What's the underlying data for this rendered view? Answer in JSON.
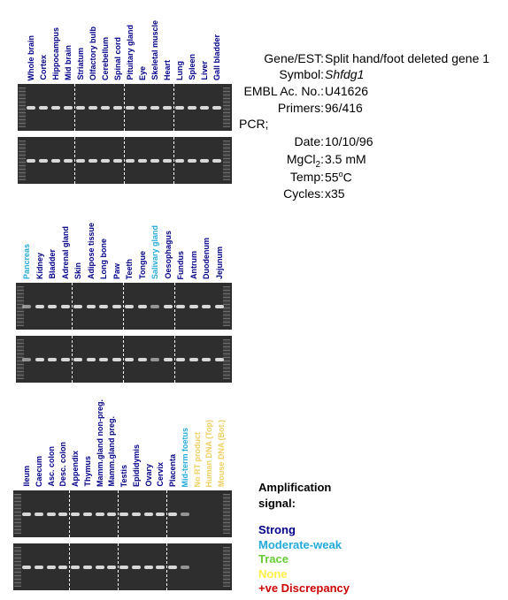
{
  "panels": [
    {
      "lanes": [
        {
          "label": "Whole brain",
          "color": "#00008b"
        },
        {
          "label": "Cortex",
          "color": "#00008b"
        },
        {
          "label": "Hippocampus",
          "color": "#00008b"
        },
        {
          "label": "Mid brain",
          "color": "#00008b"
        },
        {
          "label": "Striatum",
          "color": "#00008b"
        },
        {
          "label": "Olfactory bulb",
          "color": "#00008b"
        },
        {
          "label": "Cerebellum",
          "color": "#00008b"
        },
        {
          "label": "Spinal cord",
          "color": "#00008b"
        },
        {
          "label": "Pituitary gland",
          "color": "#00008b"
        },
        {
          "label": "Eye",
          "color": "#00008b"
        },
        {
          "label": "Skeletal muscle",
          "color": "#00008b"
        },
        {
          "label": "Heart",
          "color": "#00008b"
        },
        {
          "label": "Lung",
          "color": "#00008b"
        },
        {
          "label": "Spleen",
          "color": "#00008b"
        },
        {
          "label": "Liver",
          "color": "#00008b"
        },
        {
          "label": "Gall bladder",
          "color": "#00008b"
        }
      ]
    },
    {
      "lanes": [
        {
          "label": "Pancreas",
          "color": "#22aadd"
        },
        {
          "label": "Kidney",
          "color": "#00008b"
        },
        {
          "label": "Bladder",
          "color": "#00008b"
        },
        {
          "label": "Adrenal gland",
          "color": "#00008b"
        },
        {
          "label": "Skin",
          "color": "#00008b"
        },
        {
          "label": "Adipose tissue",
          "color": "#00008b"
        },
        {
          "label": "Long bone",
          "color": "#00008b"
        },
        {
          "label": "Paw",
          "color": "#00008b"
        },
        {
          "label": "Teeth",
          "color": "#00008b"
        },
        {
          "label": "Tongue",
          "color": "#00008b"
        },
        {
          "label": "Salivary gland",
          "color": "#22aadd"
        },
        {
          "label": "Oesophagus",
          "color": "#00008b"
        },
        {
          "label": "Fundus",
          "color": "#00008b"
        },
        {
          "label": "Antrum",
          "color": "#00008b"
        },
        {
          "label": "Duodenum",
          "color": "#00008b"
        },
        {
          "label": "Jejunum",
          "color": "#00008b"
        }
      ]
    },
    {
      "lanes": [
        {
          "label": "Ileum",
          "color": "#00008b"
        },
        {
          "label": "Caecum",
          "color": "#00008b"
        },
        {
          "label": "Asc. colon",
          "color": "#00008b"
        },
        {
          "label": "Desc. colon",
          "color": "#00008b"
        },
        {
          "label": "Appendix",
          "color": "#00008b"
        },
        {
          "label": "Thymus",
          "color": "#00008b"
        },
        {
          "label": "Mamm.gland non-preg.",
          "color": "#00008b"
        },
        {
          "label": "Mamm.gland preg.",
          "color": "#00008b"
        },
        {
          "label": "Testis",
          "color": "#00008b"
        },
        {
          "label": "Epididymis",
          "color": "#00008b"
        },
        {
          "label": "Ovary",
          "color": "#00008b"
        },
        {
          "label": "Cervix",
          "color": "#00008b"
        },
        {
          "label": "Placenta",
          "color": "#00008b"
        },
        {
          "label": "Mid-term foetus",
          "color": "#22aadd"
        },
        {
          "label": "No RT product",
          "color": "#f0d060"
        },
        {
          "label": "Human DNA (Top)",
          "color": "#f0d060"
        },
        {
          "label": "Mouse DNA (Bot.)",
          "color": "#f0d060"
        }
      ]
    }
  ],
  "info": {
    "gene_key": "Gene/EST:",
    "gene": "Split hand/foot deleted gene 1",
    "symbol_key": "Symbol:",
    "symbol": "Shfdg1",
    "embl_key": "EMBL Ac. No.:",
    "embl": "U41626",
    "primers_key": "Primers:",
    "primers": "96/416",
    "pcr": "PCR;",
    "date_key": "Date:",
    "date": "10/10/96",
    "mg_key": "MgCl",
    "mg_sub": "2",
    "mg_colon": ":",
    "mg": "3.5 mM",
    "temp_key": "Temp:",
    "temp": "55",
    "temp_sup": "o",
    "temp_unit": "C",
    "cycles_key": "Cycles:",
    "cycles": "x35"
  },
  "legend": {
    "title": "Amplification signal:",
    "items": [
      {
        "name": "Strong",
        "color": "#00008b"
      },
      {
        "name": "Moderate-weak",
        "color": "#22aadd"
      },
      {
        "name": "Trace",
        "color": "#66cc33"
      },
      {
        "name": "None",
        "color": "#ffee44"
      },
      {
        "name": "+ve Discrepancy",
        "color": "#cc0000"
      }
    ]
  }
}
